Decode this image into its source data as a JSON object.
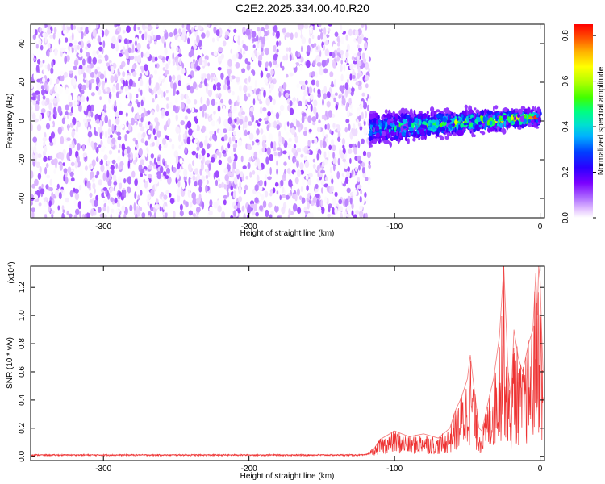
{
  "title": "C2E2.2025.334.00.40.R20",
  "chart_data": [
    {
      "type": "heatmap",
      "xlabel": "Height of straight line (km)",
      "ylabel": "Frequency (Hz)",
      "xlim": [
        -350,
        3
      ],
      "ylim": [
        -50,
        50
      ],
      "xticks": [
        -300,
        -200,
        -100,
        0
      ],
      "yticks": [
        -40,
        -20,
        0,
        20,
        40
      ],
      "grid": false,
      "colorbar": {
        "label": "Normalized spectral amplitude",
        "range": [
          0,
          0.85
        ],
        "ticks": [
          0.0,
          0.2,
          0.4,
          0.6,
          0.8
        ],
        "colors": [
          "#ffffff",
          "#e6c8ff",
          "#b070ff",
          "#7a00ff",
          "#2a00ff",
          "#0040ff",
          "#00b0ff",
          "#00e0d0",
          "#00ff80",
          "#40ff00",
          "#b0ff00",
          "#ffff00",
          "#ffb000",
          "#ff5000",
          "#ff0000"
        ]
      },
      "description_regions": [
        {
          "x_range": [
            -350,
            -117
          ],
          "freq_range": [
            -50,
            50
          ],
          "amplitude_range": [
            0.0,
            0.15
          ]
        },
        {
          "x_range": [
            -117,
            0
          ],
          "freq_range": [
            -15,
            10
          ],
          "amplitude_range": [
            0.15,
            0.85
          ]
        }
      ]
    },
    {
      "type": "line",
      "xlabel": "Height of straight line (km)",
      "ylabel": "SNR (10 * v/v)",
      "y_multiplier": "(x10⁴)",
      "xlim": [
        -350,
        3
      ],
      "ylim": [
        -0.03,
        1.35
      ],
      "xticks": [
        -300,
        -200,
        -100,
        0
      ],
      "yticks": [
        0.0,
        0.2,
        0.4,
        0.6,
        0.8,
        1.0,
        1.2
      ],
      "grid": false,
      "series": [
        {
          "color": "#ee3333",
          "x": [
            -350,
            -300,
            -250,
            -200,
            -150,
            -120,
            -115,
            -110,
            -100,
            -90,
            -80,
            -70,
            -62,
            -58,
            -54,
            -50,
            -48,
            -45,
            -42,
            -40,
            -35,
            -32,
            -28,
            -25,
            -22,
            -20,
            -18,
            -15,
            -12,
            -8,
            -5,
            -3,
            -2,
            -1,
            0,
            1,
            2
          ],
          "y": [
            0.01,
            0.01,
            0.01,
            0.01,
            0.01,
            0.01,
            0.04,
            0.12,
            0.18,
            0.14,
            0.16,
            0.13,
            0.2,
            0.33,
            0.42,
            0.55,
            0.72,
            0.45,
            0.2,
            0.18,
            0.42,
            0.55,
            0.85,
            1.35,
            0.6,
            0.4,
            0.9,
            0.7,
            0.6,
            0.8,
            0.9,
            1.3,
            1.0,
            1.35,
            1.25,
            0.9,
            0.6
          ]
        }
      ]
    }
  ]
}
